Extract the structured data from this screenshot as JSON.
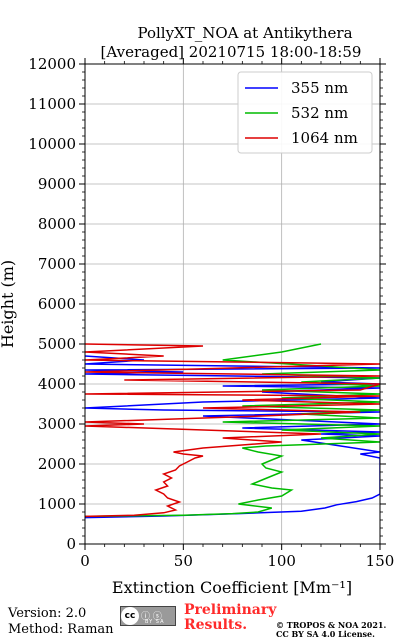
{
  "chart_data": {
    "type": "line",
    "title_line1": "PollyXT_NOA at Antikythera",
    "title_line2": "[Averaged] 20210715 18:00-18:59",
    "xlabel": "Extinction Coefficient [Mm⁻¹]",
    "ylabel": "Height (m)",
    "xlim": [
      0,
      150
    ],
    "ylim": [
      0,
      12000
    ],
    "xticks": [
      "0",
      "50",
      "100",
      "150"
    ],
    "yticks": [
      "0",
      "1000",
      "2000",
      "3000",
      "4000",
      "5000",
      "6000",
      "7000",
      "8000",
      "9000",
      "10000",
      "11000",
      "12000"
    ],
    "grid": true,
    "legend_position": "top-right",
    "series": [
      {
        "name": "355 nm",
        "color": "#0000ff",
        "points": [
          [
            0,
            660
          ],
          [
            40,
            700
          ],
          [
            78,
            760
          ],
          [
            110,
            820
          ],
          [
            122,
            900
          ],
          [
            128,
            980
          ],
          [
            138,
            1060
          ],
          [
            146,
            1150
          ],
          [
            150,
            1250
          ],
          [
            150,
            2150
          ],
          [
            140,
            2250
          ],
          [
            150,
            2300
          ],
          [
            110,
            2600
          ],
          [
            150,
            2700
          ],
          [
            120,
            2750
          ],
          [
            150,
            2800
          ],
          [
            80,
            2900
          ],
          [
            150,
            3000
          ],
          [
            60,
            3200
          ],
          [
            150,
            3300
          ],
          [
            40,
            3350
          ],
          [
            0,
            3400
          ],
          [
            60,
            3550
          ],
          [
            150,
            3650
          ],
          [
            90,
            3800
          ],
          [
            150,
            3900
          ],
          [
            70,
            3950
          ],
          [
            150,
            4000
          ],
          [
            120,
            4050
          ],
          [
            150,
            4150
          ],
          [
            0,
            4250
          ],
          [
            50,
            4300
          ],
          [
            0,
            4350
          ],
          [
            150,
            4400
          ],
          [
            0,
            4500
          ],
          [
            30,
            4600
          ],
          [
            0,
            4700
          ]
        ]
      },
      {
        "name": "532 nm",
        "color": "#00bb00",
        "points": [
          [
            0,
            690
          ],
          [
            50,
            720
          ],
          [
            75,
            760
          ],
          [
            88,
            800
          ],
          [
            95,
            900
          ],
          [
            78,
            1000
          ],
          [
            88,
            1100
          ],
          [
            100,
            1200
          ],
          [
            105,
            1350
          ],
          [
            95,
            1400
          ],
          [
            85,
            1500
          ],
          [
            90,
            1600
          ],
          [
            95,
            1700
          ],
          [
            100,
            1800
          ],
          [
            92,
            1900
          ],
          [
            90,
            2000
          ],
          [
            95,
            2100
          ],
          [
            100,
            2200
          ],
          [
            88,
            2300
          ],
          [
            80,
            2400
          ],
          [
            92,
            2450
          ],
          [
            150,
            2550
          ],
          [
            120,
            2650
          ],
          [
            150,
            2750
          ],
          [
            100,
            2850
          ],
          [
            150,
            2950
          ],
          [
            70,
            3050
          ],
          [
            150,
            3150
          ],
          [
            110,
            3250
          ],
          [
            150,
            3350
          ],
          [
            80,
            3450
          ],
          [
            150,
            3550
          ],
          [
            100,
            3650
          ],
          [
            150,
            3750
          ],
          [
            90,
            3850
          ],
          [
            150,
            3950
          ],
          [
            110,
            4050
          ],
          [
            150,
            4150
          ],
          [
            90,
            4250
          ],
          [
            150,
            4350
          ],
          [
            120,
            4450
          ],
          [
            70,
            4600
          ],
          [
            100,
            4800
          ],
          [
            120,
            5000
          ]
        ]
      },
      {
        "name": "1064 nm",
        "color": "#dd0000",
        "points": [
          [
            0,
            690
          ],
          [
            25,
            720
          ],
          [
            40,
            780
          ],
          [
            46,
            850
          ],
          [
            42,
            950
          ],
          [
            48,
            1050
          ],
          [
            42,
            1150
          ],
          [
            40,
            1250
          ],
          [
            36,
            1350
          ],
          [
            42,
            1450
          ],
          [
            40,
            1550
          ],
          [
            44,
            1650
          ],
          [
            40,
            1750
          ],
          [
            46,
            1850
          ],
          [
            48,
            1950
          ],
          [
            52,
            2050
          ],
          [
            56,
            2150
          ],
          [
            60,
            2200
          ],
          [
            50,
            2250
          ],
          [
            45,
            2300
          ],
          [
            60,
            2400
          ],
          [
            100,
            2550
          ],
          [
            70,
            2650
          ],
          [
            120,
            2750
          ],
          [
            0,
            2950
          ],
          [
            30,
            3000
          ],
          [
            0,
            3050
          ],
          [
            90,
            3200
          ],
          [
            140,
            3300
          ],
          [
            60,
            3400
          ],
          [
            150,
            3500
          ],
          [
            80,
            3600
          ],
          [
            150,
            3700
          ],
          [
            0,
            3750
          ],
          [
            140,
            3850
          ],
          [
            150,
            4000
          ],
          [
            20,
            4100
          ],
          [
            150,
            4200
          ],
          [
            0,
            4300
          ],
          [
            150,
            4500
          ],
          [
            0,
            4600
          ],
          [
            40,
            4700
          ],
          [
            0,
            4800
          ],
          [
            60,
            4950
          ],
          [
            0,
            5000
          ]
        ]
      }
    ]
  },
  "footer": {
    "version": "Version: 2.0",
    "method": "Method: Raman",
    "license_badge": "cc",
    "license_badge_text": "BY SA",
    "preliminary_line1": "Preliminary",
    "preliminary_line2": "Results.",
    "copyright_line1": "© TROPOS & NOA 2021.",
    "copyright_line2": "CC BY SA 4.0 License."
  }
}
